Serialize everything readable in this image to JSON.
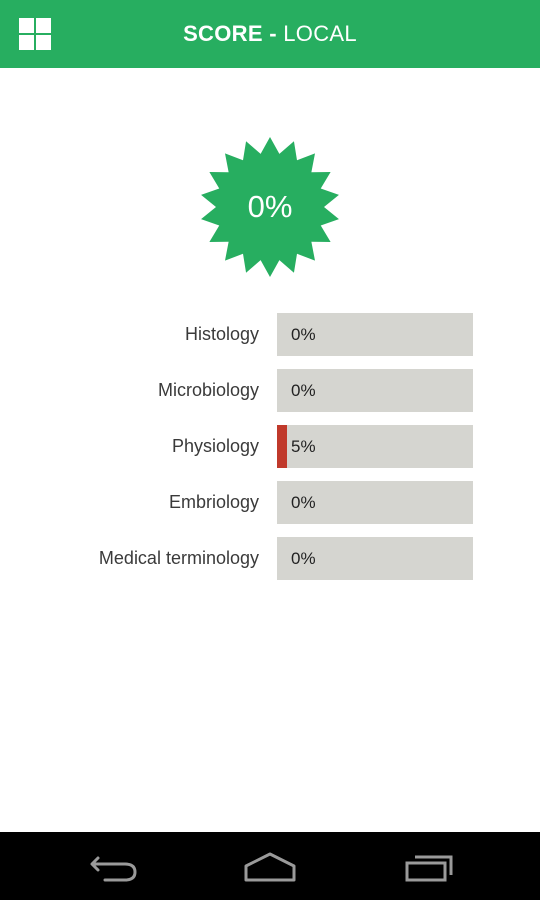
{
  "header": {
    "title_bold": "SCORE",
    "title_sep": " - ",
    "title_light": "LOCAL",
    "menu_icon": "grid-menu-icon",
    "background": "#27ae60"
  },
  "overall": {
    "score_label": "0%",
    "score_percent": 0,
    "badge_color": "#27ae60"
  },
  "categories": [
    {
      "name": "Histology",
      "value_label": "0%",
      "percent": 0
    },
    {
      "name": "Microbiology",
      "value_label": "0%",
      "percent": 0
    },
    {
      "name": "Physiology",
      "value_label": "5%",
      "percent": 5
    },
    {
      "name": "Embriology",
      "value_label": "0%",
      "percent": 0
    },
    {
      "name": "Medical terminology",
      "value_label": "0%",
      "percent": 0
    }
  ],
  "colors": {
    "bar_track": "#d5d5d0",
    "bar_fill": "#c0392b",
    "label_text": "#3a3a3a"
  },
  "navigation": {
    "back_icon": "back-icon",
    "home_icon": "home-icon",
    "recents_icon": "recent-apps-icon"
  }
}
